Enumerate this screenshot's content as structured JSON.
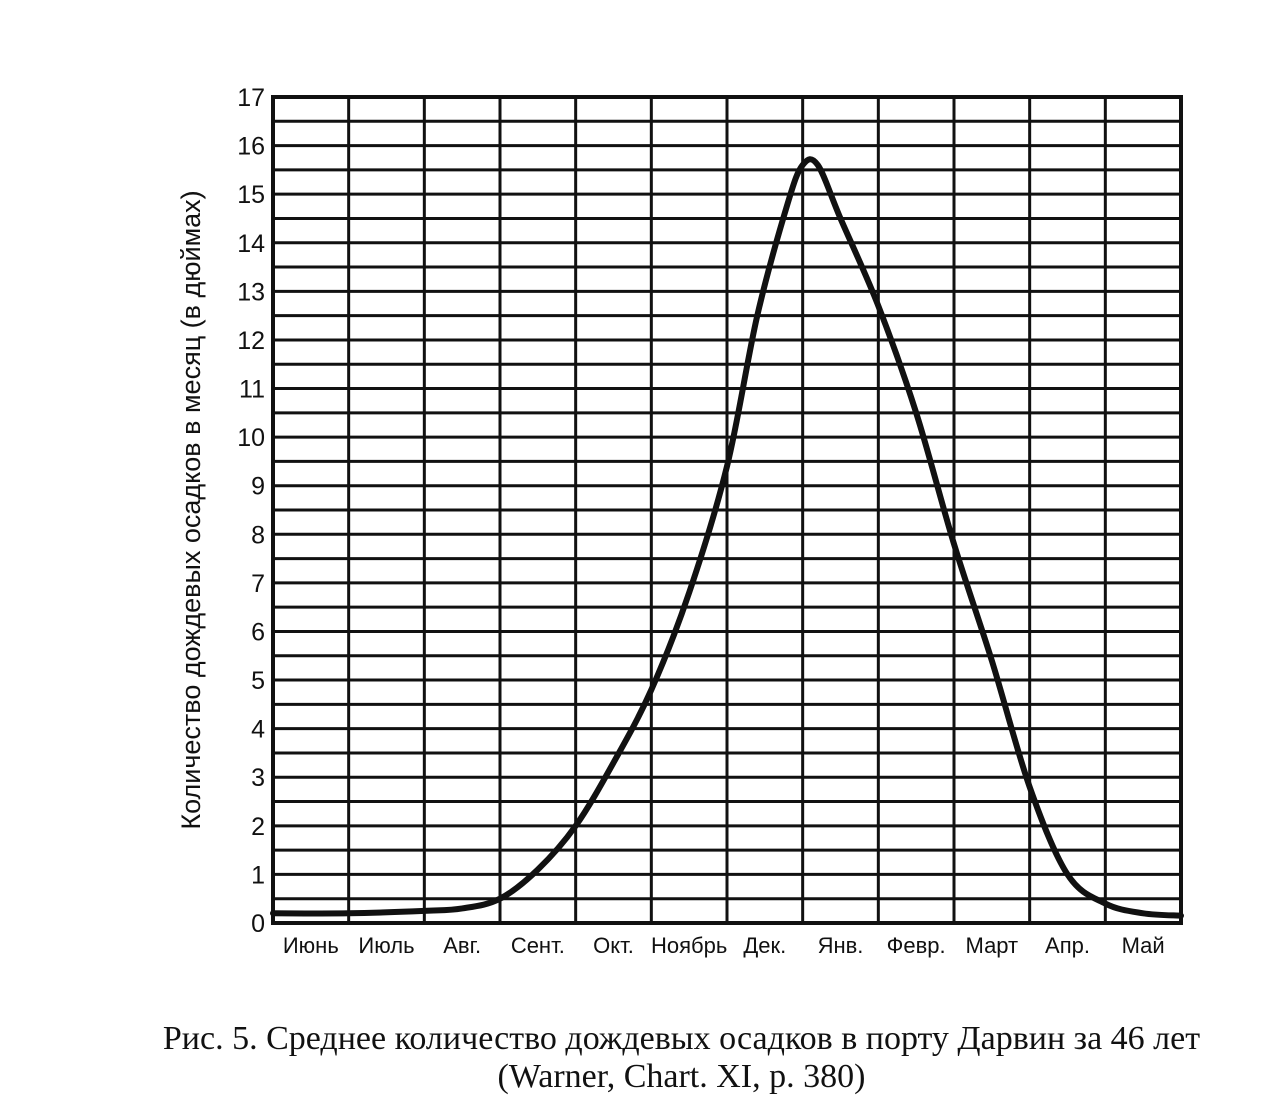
{
  "chart_data": {
    "type": "line",
    "ylabel": "Количество дождевых осадков в месяц (в дюймах)",
    "xlabel": "",
    "categories": [
      "Июнь",
      "Июль",
      "Авг.",
      "Сент.",
      "Окт.",
      "Ноябрь",
      "Дек.",
      "Янв.",
      "Февр.",
      "Март",
      "Апр.",
      "Май"
    ],
    "yticks": [
      "0",
      "1",
      "2",
      "3",
      "4",
      "5",
      "6",
      "7",
      "8",
      "9",
      "10",
      "11",
      "12",
      "13",
      "14",
      "15",
      "16",
      "17"
    ],
    "ylim": [
      0,
      17
    ],
    "grid": true,
    "series": [
      {
        "x": [
          0,
          1,
          2,
          2.5,
          3,
          3.5,
          4,
          4.5,
          5,
          5.5,
          6,
          6.4,
          6.8,
          7.0,
          7.2,
          7.5,
          8,
          8.5,
          9,
          9.5,
          10,
          10.5,
          11,
          11.5,
          12
        ],
        "values": [
          0.2,
          0.2,
          0.25,
          0.3,
          0.5,
          1.1,
          2.0,
          3.3,
          4.8,
          6.8,
          9.4,
          12.5,
          14.8,
          15.6,
          15.6,
          14.5,
          12.7,
          10.5,
          7.8,
          5.4,
          2.8,
          1.0,
          0.4,
          0.2,
          0.15
        ]
      }
    ]
  },
  "caption": {
    "line1": "Рис. 5. Среднее количество дождевых осадков в порту Дарвин за 46 лет",
    "line2": "(Warner, Chart. XI, p. 380)"
  }
}
